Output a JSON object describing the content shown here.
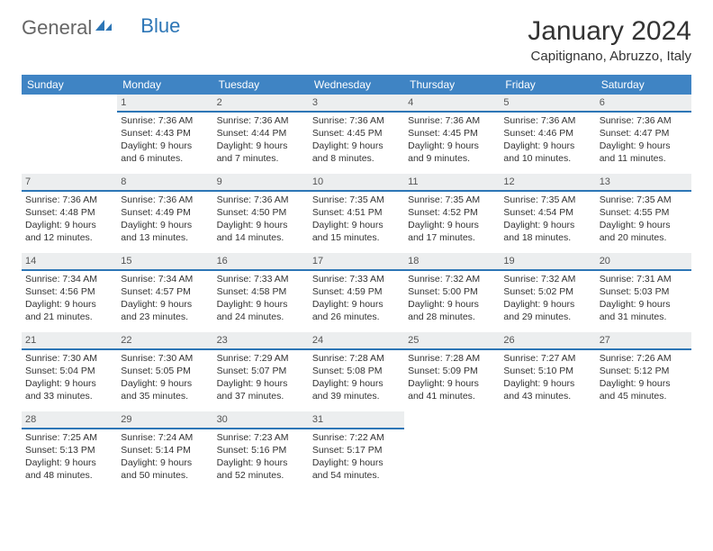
{
  "logo": {
    "part1": "General",
    "part2": "Blue"
  },
  "title": "January 2024",
  "location": "Capitignano, Abruzzo, Italy",
  "colors": {
    "header_bg": "#3f84c4",
    "header_underline": "#2d76b6",
    "daynum_bg": "#eceeef",
    "logo_blue": "#2d76b6",
    "logo_grey": "#666666"
  },
  "weekdays": [
    "Sunday",
    "Monday",
    "Tuesday",
    "Wednesday",
    "Thursday",
    "Friday",
    "Saturday"
  ],
  "weeks": [
    [
      null,
      {
        "d": "1",
        "rise": "7:36 AM",
        "set": "4:43 PM",
        "light": "9 hours and 6 minutes."
      },
      {
        "d": "2",
        "rise": "7:36 AM",
        "set": "4:44 PM",
        "light": "9 hours and 7 minutes."
      },
      {
        "d": "3",
        "rise": "7:36 AM",
        "set": "4:45 PM",
        "light": "9 hours and 8 minutes."
      },
      {
        "d": "4",
        "rise": "7:36 AM",
        "set": "4:45 PM",
        "light": "9 hours and 9 minutes."
      },
      {
        "d": "5",
        "rise": "7:36 AM",
        "set": "4:46 PM",
        "light": "9 hours and 10 minutes."
      },
      {
        "d": "6",
        "rise": "7:36 AM",
        "set": "4:47 PM",
        "light": "9 hours and 11 minutes."
      }
    ],
    [
      {
        "d": "7",
        "rise": "7:36 AM",
        "set": "4:48 PM",
        "light": "9 hours and 12 minutes."
      },
      {
        "d": "8",
        "rise": "7:36 AM",
        "set": "4:49 PM",
        "light": "9 hours and 13 minutes."
      },
      {
        "d": "9",
        "rise": "7:36 AM",
        "set": "4:50 PM",
        "light": "9 hours and 14 minutes."
      },
      {
        "d": "10",
        "rise": "7:35 AM",
        "set": "4:51 PM",
        "light": "9 hours and 15 minutes."
      },
      {
        "d": "11",
        "rise": "7:35 AM",
        "set": "4:52 PM",
        "light": "9 hours and 17 minutes."
      },
      {
        "d": "12",
        "rise": "7:35 AM",
        "set": "4:54 PM",
        "light": "9 hours and 18 minutes."
      },
      {
        "d": "13",
        "rise": "7:35 AM",
        "set": "4:55 PM",
        "light": "9 hours and 20 minutes."
      }
    ],
    [
      {
        "d": "14",
        "rise": "7:34 AM",
        "set": "4:56 PM",
        "light": "9 hours and 21 minutes."
      },
      {
        "d": "15",
        "rise": "7:34 AM",
        "set": "4:57 PM",
        "light": "9 hours and 23 minutes."
      },
      {
        "d": "16",
        "rise": "7:33 AM",
        "set": "4:58 PM",
        "light": "9 hours and 24 minutes."
      },
      {
        "d": "17",
        "rise": "7:33 AM",
        "set": "4:59 PM",
        "light": "9 hours and 26 minutes."
      },
      {
        "d": "18",
        "rise": "7:32 AM",
        "set": "5:00 PM",
        "light": "9 hours and 28 minutes."
      },
      {
        "d": "19",
        "rise": "7:32 AM",
        "set": "5:02 PM",
        "light": "9 hours and 29 minutes."
      },
      {
        "d": "20",
        "rise": "7:31 AM",
        "set": "5:03 PM",
        "light": "9 hours and 31 minutes."
      }
    ],
    [
      {
        "d": "21",
        "rise": "7:30 AM",
        "set": "5:04 PM",
        "light": "9 hours and 33 minutes."
      },
      {
        "d": "22",
        "rise": "7:30 AM",
        "set": "5:05 PM",
        "light": "9 hours and 35 minutes."
      },
      {
        "d": "23",
        "rise": "7:29 AM",
        "set": "5:07 PM",
        "light": "9 hours and 37 minutes."
      },
      {
        "d": "24",
        "rise": "7:28 AM",
        "set": "5:08 PM",
        "light": "9 hours and 39 minutes."
      },
      {
        "d": "25",
        "rise": "7:28 AM",
        "set": "5:09 PM",
        "light": "9 hours and 41 minutes."
      },
      {
        "d": "26",
        "rise": "7:27 AM",
        "set": "5:10 PM",
        "light": "9 hours and 43 minutes."
      },
      {
        "d": "27",
        "rise": "7:26 AM",
        "set": "5:12 PM",
        "light": "9 hours and 45 minutes."
      }
    ],
    [
      {
        "d": "28",
        "rise": "7:25 AM",
        "set": "5:13 PM",
        "light": "9 hours and 48 minutes."
      },
      {
        "d": "29",
        "rise": "7:24 AM",
        "set": "5:14 PM",
        "light": "9 hours and 50 minutes."
      },
      {
        "d": "30",
        "rise": "7:23 AM",
        "set": "5:16 PM",
        "light": "9 hours and 52 minutes."
      },
      {
        "d": "31",
        "rise": "7:22 AM",
        "set": "5:17 PM",
        "light": "9 hours and 54 minutes."
      },
      null,
      null,
      null
    ]
  ],
  "labels": {
    "sunrise": "Sunrise:",
    "sunset": "Sunset:",
    "daylight": "Daylight:"
  }
}
